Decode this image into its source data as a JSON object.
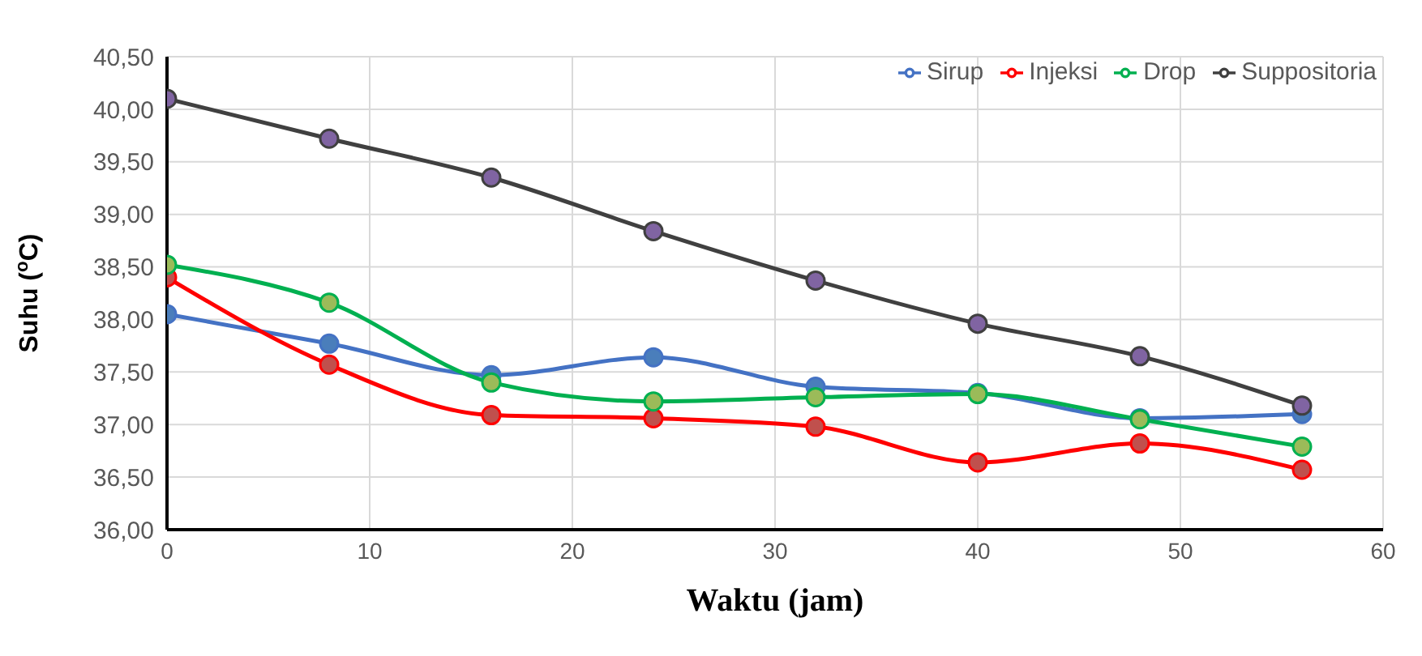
{
  "chart_data": {
    "type": "line",
    "xlabel": "Waktu (jam)",
    "ylabel": "Suhu ($^{o}$C)",
    "x": [
      0,
      8,
      16,
      24,
      32,
      40,
      48,
      56
    ],
    "series": [
      {
        "name": "Sirup",
        "color": "#4472c4",
        "values": [
          38.05,
          37.77,
          37.47,
          37.64,
          37.36,
          37.3,
          37.06,
          37.1
        ]
      },
      {
        "name": "Injeksi",
        "color": "#ff0000",
        "values": [
          38.4,
          37.57,
          37.09,
          37.06,
          36.98,
          36.64,
          36.82,
          36.57
        ]
      },
      {
        "name": "Drop",
        "color": "#00b050",
        "values": [
          38.52,
          38.16,
          37.4,
          37.22,
          37.26,
          37.29,
          37.05,
          36.79
        ]
      },
      {
        "name": "Suppositoria",
        "color": "#404040",
        "values": [
          40.1,
          39.72,
          39.35,
          38.84,
          38.37,
          37.96,
          37.65,
          37.18
        ]
      }
    ],
    "xlim": [
      0,
      60
    ],
    "xticks": [
      0,
      10,
      20,
      30,
      40,
      50,
      60
    ],
    "ylim": [
      36,
      40.5
    ],
    "yticks": [
      {
        "value": 36,
        "label": "36,00"
      },
      {
        "value": 36.5,
        "label": "36,50"
      },
      {
        "value": 37,
        "label": "37,00"
      },
      {
        "value": 37.5,
        "label": "37,50"
      },
      {
        "value": 38,
        "label": "38,00"
      },
      {
        "value": 38.5,
        "label": "38,50"
      },
      {
        "value": 39,
        "label": "39,00"
      },
      {
        "value": 39.5,
        "label": "39,50"
      },
      {
        "value": 40,
        "label": "40,00"
      },
      {
        "value": 40.5,
        "label": "40,50"
      }
    ],
    "grid": true,
    "legend": "top right",
    "marker": "circle",
    "line_style": "solid"
  }
}
